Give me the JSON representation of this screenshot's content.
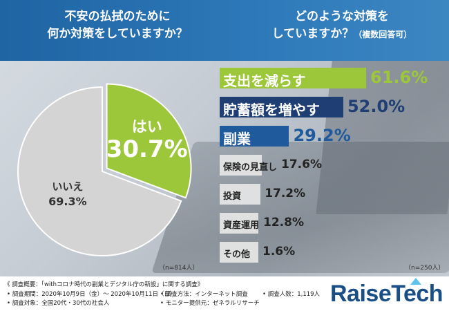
{
  "header": {
    "left_q_line1": "不安の払拭のために",
    "left_q_line2": "何か対策をしていますか？",
    "right_q_line1": "どのような対策を",
    "right_q_line2": "していますか？",
    "right_q_suffix": "（複数回答可）"
  },
  "chart_data": [
    {
      "type": "pie",
      "slices": [
        {
          "label": "はい",
          "value": 30.7,
          "display": "30.7%",
          "color": "#9dc73a"
        },
        {
          "label": "いいえ",
          "value": 69.3,
          "display": "69.3%",
          "color": "#d4d4d4"
        }
      ],
      "sample": "（n=814人）"
    },
    {
      "type": "bar",
      "orientation": "horizontal",
      "sample": "（n=250人）",
      "xlim": [
        0,
        61.6
      ],
      "bars": [
        {
          "label": "支出を減らす",
          "value": 61.6,
          "display": "61.6%",
          "color": "#9dc73a",
          "text_color": "#ffffff",
          "value_color": "#9dc73a"
        },
        {
          "label": "貯蓄額を増やす",
          "value": 52.0,
          "display": "52.0%",
          "color": "#1f3f74",
          "text_color": "#ffffff",
          "value_color": "#1f3f74"
        },
        {
          "label": "副業",
          "value": 29.2,
          "display": "29.2%",
          "color": "#1f5a9c",
          "text_color": "#ffffff",
          "value_color": "#1f5a9c"
        },
        {
          "label": "保険の見直し",
          "value": 17.6,
          "display": "17.6%",
          "color": "#e6e6e6",
          "text_color": "#222222",
          "value_color": "#222222"
        },
        {
          "label": "投資",
          "value": 17.2,
          "display": "17.2%",
          "color": "#e6e6e6",
          "text_color": "#222222",
          "value_color": "#222222"
        },
        {
          "label": "資産運用",
          "value": 12.8,
          "display": "12.8%",
          "color": "#e6e6e6",
          "text_color": "#222222",
          "value_color": "#222222"
        },
        {
          "label": "その他",
          "value": 1.6,
          "display": "1.6%",
          "color": "#e6e6e6",
          "text_color": "#222222",
          "value_color": "#222222"
        }
      ]
    }
  ],
  "footer": {
    "survey_title": "《 調査概要：「withコロナ時代の副業とデジタル庁の新設」に関する調査》",
    "period": "• 調査期間：2020年10月9日（金）～ 2020年10月11日（日）",
    "target": "• 調査対象：全国20代・30代の社会人",
    "method": "• 調査方法：インターネット調査",
    "provider": "• モニター提供元：ゼネラルリサーチ",
    "count": "• 調査人数：1,119人",
    "logo": "RaiseTech"
  }
}
